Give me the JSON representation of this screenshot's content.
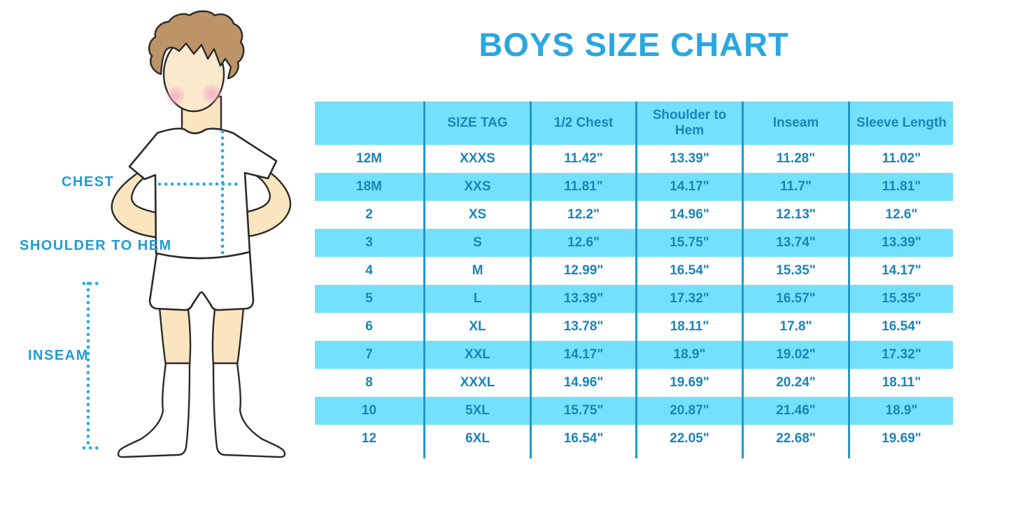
{
  "title": "BOYS SIZE CHART",
  "figure": {
    "description": "outline illustration of a boy in white t-shirt, shorts and knee socks with dotted measurement guides",
    "labels": {
      "chest": "CHEST",
      "shoulder_to_hem": "SHOULDER TO HEM",
      "inseam": "INSEAM"
    }
  },
  "colors": {
    "title_blue": "#29A7E0",
    "label_blue": "#1E9CD6",
    "table_text_blue": "#1B84B8",
    "table_stripe_blue": "#74E1FC",
    "table_divider_blue": "#2098CB",
    "dotted_line_blue": "#29A9E0",
    "hair_brown": "#BC9468",
    "skin": "#FAE5BF",
    "blush_pink": "#F2A8C2",
    "outline": "#2b2b2b"
  },
  "chart_data": {
    "type": "table",
    "title": "BOYS SIZE CHART",
    "columns": [
      "",
      "SIZE TAG",
      "1/2 Chest",
      "Shoulder to Hem",
      "Inseam",
      "Sleeve Length"
    ],
    "rows": [
      [
        "12M",
        "XXXS",
        "11.42\"",
        "13.39\"",
        "11.28\"",
        "11.02\""
      ],
      [
        "18M",
        "XXS",
        "11.81\"",
        "14.17\"",
        "11.7\"",
        "11.81\""
      ],
      [
        "2",
        "XS",
        "12.2\"",
        "14.96\"",
        "12.13\"",
        "12.6\""
      ],
      [
        "3",
        "S",
        "12.6\"",
        "15.75\"",
        "13.74\"",
        "13.39\""
      ],
      [
        "4",
        "M",
        "12.99\"",
        "16.54\"",
        "15.35\"",
        "14.17\""
      ],
      [
        "5",
        "L",
        "13.39\"",
        "17.32\"",
        "16.57\"",
        "15.35\""
      ],
      [
        "6",
        "XL",
        "13.78\"",
        "18.11\"",
        "17.8\"",
        "16.54\""
      ],
      [
        "7",
        "XXL",
        "14.17\"",
        "18.9\"",
        "19.02\"",
        "17.32\""
      ],
      [
        "8",
        "XXXL",
        "14.96\"",
        "19.69\"",
        "20.24\"",
        "18.11\""
      ],
      [
        "10",
        "5XL",
        "15.75\"",
        "20.87\"",
        "21.46\"",
        "18.9\""
      ],
      [
        "12",
        "6XL",
        "16.54\"",
        "22.05\"",
        "22.68\"",
        "19.69\""
      ]
    ],
    "layout": {
      "stripe_pattern": "header and alternating rows light blue, others white",
      "units": "inches"
    }
  }
}
